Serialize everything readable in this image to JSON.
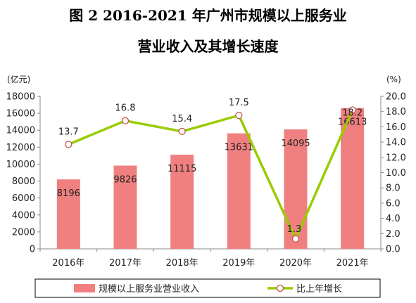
{
  "title_line1": "图 2    2016-2021 年广州市规模以上服务业",
  "title_line2": "营业收入及其增长速度",
  "chart_data": {
    "type": "bar",
    "categories": [
      "2016年",
      "2017年",
      "2018年",
      "2019年",
      "2020年",
      "2021年"
    ],
    "series": [
      {
        "name": "规模以上服务业营业收入",
        "kind": "bar",
        "axis": "left",
        "color": "#f08080",
        "values": [
          8196,
          9826,
          11115,
          13631,
          14095,
          16613
        ],
        "labels": [
          "8196",
          "9826",
          "11115",
          "13631",
          "14095",
          "16613"
        ]
      },
      {
        "name": "比上年增长",
        "kind": "line",
        "axis": "right",
        "color": "#99cc00",
        "marker_fill": "#ffffff",
        "marker_stroke": "#c0504d",
        "values": [
          13.7,
          16.8,
          15.4,
          17.5,
          1.3,
          18.2
        ],
        "labels": [
          "13.7",
          "16.8",
          "15.4",
          "17.5",
          "1.3",
          "18.2"
        ]
      }
    ],
    "y_left": {
      "unit": "(亿元)",
      "range": [
        0,
        18000
      ],
      "ticks": [
        "0",
        "2000",
        "4000",
        "6000",
        "8000",
        "10000",
        "12000",
        "14000",
        "16000",
        "18000"
      ]
    },
    "y_right": {
      "unit": "(%)",
      "range": [
        0,
        20
      ],
      "ticks": [
        "0.0",
        "2.0",
        "4.0",
        "6.0",
        "8.0",
        "10.0",
        "12.0",
        "14.0",
        "16.0",
        "18.0",
        "20.0"
      ]
    },
    "grid": false,
    "legend": "bottom"
  }
}
